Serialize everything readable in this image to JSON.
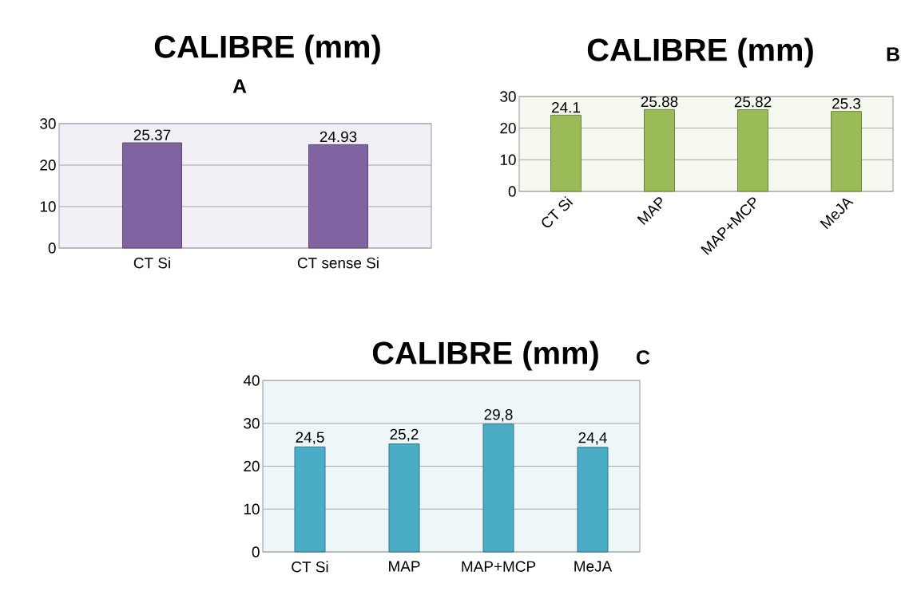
{
  "chart_data": [
    {
      "type": "bar",
      "title": "CALIBRE (mm)",
      "subtitle": "A",
      "categories": [
        "CT Si",
        "CT sense Si"
      ],
      "values": [
        25.37,
        24.93
      ],
      "value_labels": [
        "25.37",
        "24.93"
      ],
      "color": "#8064a2",
      "ylim": [
        0,
        30
      ],
      "yticks": [
        0,
        10,
        20,
        30
      ],
      "grid": "y"
    },
    {
      "type": "bar",
      "title": "CALIBRE (mm)",
      "subtitle": "B",
      "categories": [
        "CT  Si",
        "MAP",
        "MAP+MCP",
        "MeJA"
      ],
      "values": [
        24.1,
        25.88,
        25.82,
        25.3
      ],
      "value_labels": [
        "24.1",
        "25.88",
        "25.82",
        "25.3"
      ],
      "color": "#9bbb59",
      "ylim": [
        0,
        30
      ],
      "yticks": [
        0,
        10,
        20,
        30
      ],
      "grid": "y"
    },
    {
      "type": "bar",
      "title": "CALIBRE (mm)",
      "subtitle": "C",
      "categories": [
        "CT Si",
        "MAP",
        "MAP+MCP",
        "MeJA"
      ],
      "values": [
        24.5,
        25.2,
        29.8,
        24.4
      ],
      "value_labels": [
        "24,5",
        "25,2",
        "29,8",
        "24,4"
      ],
      "color": "#4bacc6",
      "ylim": [
        0,
        40
      ],
      "yticks": [
        0,
        10,
        20,
        30,
        40
      ],
      "grid": "y"
    }
  ]
}
